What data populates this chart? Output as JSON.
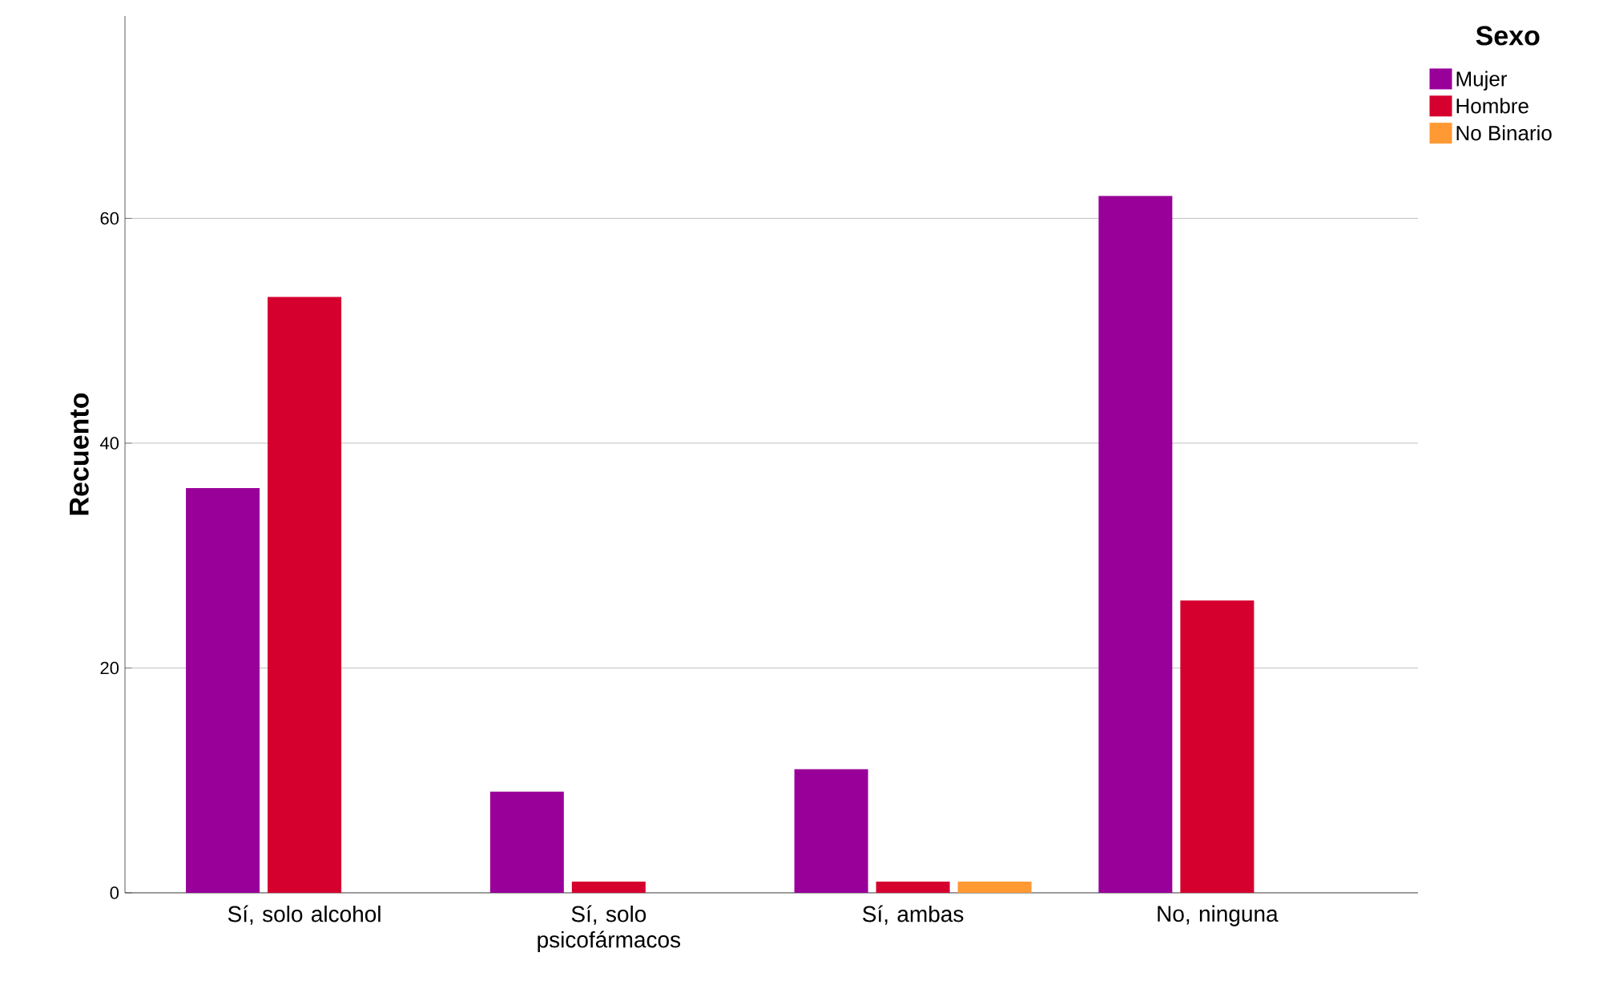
{
  "chart_data": {
    "type": "bar",
    "ylabel": "Recuento",
    "legend_title": "Sexo",
    "categories": [
      "Sí, solo alcohol",
      "Sí, solo psicofármacos",
      "Sí, ambas",
      "No, ninguna"
    ],
    "series": [
      {
        "name": "Mujer",
        "color": "#990099",
        "values": [
          36,
          9,
          11,
          62
        ]
      },
      {
        "name": "Hombre",
        "color": "#d6002f",
        "values": [
          53,
          1,
          1,
          26
        ]
      },
      {
        "name": "No Binario",
        "color": "#ff9933",
        "values": [
          null,
          null,
          1,
          null
        ]
      }
    ],
    "ylim": [
      0,
      78
    ],
    "yticks": [
      0,
      20,
      40,
      60
    ],
    "grid": "y",
    "legend": "top right"
  }
}
